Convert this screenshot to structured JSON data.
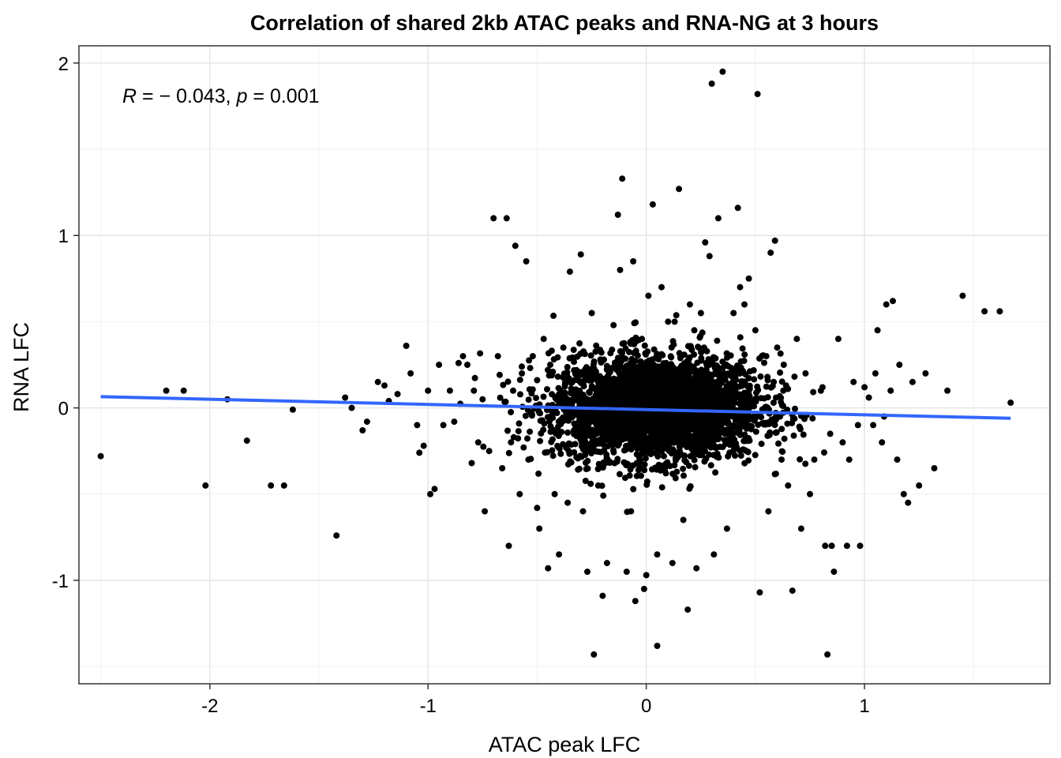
{
  "chart_data": {
    "type": "scatter",
    "title": "Correlation of shared 2kb ATAC peaks and RNA-NG  at 3 hours",
    "xlabel": "ATAC peak LFC",
    "ylabel": "RNA LFC",
    "xlim": [
      -2.6,
      1.85
    ],
    "ylim": [
      -1.6,
      2.1
    ],
    "x_ticks": [
      -2,
      -1,
      0,
      1
    ],
    "x_tick_labels": [
      "-2",
      "-1",
      "0",
      "1"
    ],
    "y_ticks": [
      -1,
      0,
      1,
      2
    ],
    "y_tick_labels": [
      "-1",
      "0",
      "1",
      "2"
    ],
    "grid": true,
    "annotation": {
      "r_symbol": "R",
      "r_equals": " = − 0.043, ",
      "p_symbol": "p",
      "p_equals": " = 0.001"
    },
    "point_color": "#000000",
    "fit_line": {
      "color": "#3366FF",
      "x": [
        -2.5,
        1.67
      ],
      "y": [
        0.065,
        -0.06
      ]
    },
    "points": [
      [
        -2.5,
        -0.28
      ],
      [
        -2.2,
        0.1
      ],
      [
        -2.12,
        0.1
      ],
      [
        -2.02,
        -0.45
      ],
      [
        -1.92,
        0.05
      ],
      [
        -1.83,
        -0.19
      ],
      [
        -1.72,
        -0.45
      ],
      [
        -1.66,
        -0.45
      ],
      [
        -1.62,
        -0.01
      ],
      [
        -1.42,
        -0.74
      ],
      [
        -1.38,
        0.06
      ],
      [
        -1.35,
        0.0
      ],
      [
        -1.3,
        -0.13
      ],
      [
        -1.28,
        -0.08
      ],
      [
        -1.23,
        0.15
      ],
      [
        -1.2,
        0.13
      ],
      [
        -1.18,
        0.04
      ],
      [
        -1.14,
        0.08
      ],
      [
        -1.1,
        0.36
      ],
      [
        -1.08,
        0.2
      ],
      [
        -1.05,
        -0.1
      ],
      [
        -1.04,
        -0.26
      ],
      [
        -1.02,
        -0.22
      ],
      [
        -1.0,
        0.1
      ],
      [
        -0.99,
        -0.5
      ],
      [
        -0.97,
        -0.47
      ],
      [
        -0.95,
        0.25
      ],
      [
        -0.93,
        -0.1
      ],
      [
        -0.9,
        0.1
      ],
      [
        -0.88,
        -0.08
      ],
      [
        -0.86,
        0.26
      ],
      [
        -0.84,
        0.3
      ],
      [
        -0.82,
        0.25
      ],
      [
        -0.8,
        -0.32
      ],
      [
        -0.79,
        0.1
      ],
      [
        -0.77,
        -0.2
      ],
      [
        -0.75,
        0.05
      ],
      [
        -0.74,
        -0.6
      ],
      [
        -0.72,
        -0.25
      ],
      [
        -0.7,
        1.1
      ],
      [
        -0.68,
        0.3
      ],
      [
        -0.66,
        -0.35
      ],
      [
        -0.64,
        1.1
      ],
      [
        -0.63,
        -0.8
      ],
      [
        -0.61,
        0.1
      ],
      [
        -0.6,
        0.94
      ],
      [
        -0.58,
        -0.5
      ],
      [
        -0.57,
        0.2
      ],
      [
        -0.55,
        0.85
      ],
      [
        -0.54,
        -0.3
      ],
      [
        -0.52,
        0.3
      ],
      [
        -0.5,
        -0.58
      ],
      [
        -0.49,
        -0.7
      ],
      [
        -0.47,
        0.4
      ],
      [
        -0.45,
        -0.93
      ],
      [
        -0.44,
        0.25
      ],
      [
        -0.42,
        -0.5
      ],
      [
        -0.4,
        -0.85
      ],
      [
        -0.38,
        0.35
      ],
      [
        -0.36,
        -0.55
      ],
      [
        -0.35,
        0.79
      ],
      [
        -0.3,
        0.89
      ],
      [
        -0.29,
        -0.6
      ],
      [
        -0.27,
        -0.95
      ],
      [
        -0.25,
        0.55
      ],
      [
        -0.24,
        -1.43
      ],
      [
        -0.22,
        -0.45
      ],
      [
        -0.2,
        -1.09
      ],
      [
        -0.18,
        -0.9
      ],
      [
        -0.15,
        0.48
      ],
      [
        -0.13,
        1.12
      ],
      [
        -0.12,
        0.8
      ],
      [
        -0.11,
        1.33
      ],
      [
        -0.09,
        -0.95
      ],
      [
        -0.07,
        -0.6
      ],
      [
        -0.06,
        0.85
      ],
      [
        -0.05,
        -1.12
      ],
      [
        -0.02,
        0.4
      ],
      [
        -0.01,
        -1.05
      ],
      [
        0.0,
        -0.97
      ],
      [
        0.01,
        0.65
      ],
      [
        0.03,
        1.18
      ],
      [
        0.05,
        -1.38
      ],
      [
        0.05,
        -0.85
      ],
      [
        0.07,
        0.7
      ],
      [
        0.1,
        0.5
      ],
      [
        0.12,
        -0.9
      ],
      [
        0.13,
        0.5
      ],
      [
        0.15,
        1.27
      ],
      [
        0.17,
        -0.65
      ],
      [
        0.19,
        -1.17
      ],
      [
        0.2,
        0.6
      ],
      [
        0.22,
        0.45
      ],
      [
        0.23,
        -0.93
      ],
      [
        0.25,
        0.55
      ],
      [
        0.27,
        0.96
      ],
      [
        0.29,
        0.88
      ],
      [
        0.3,
        1.88
      ],
      [
        0.31,
        -0.85
      ],
      [
        0.33,
        1.1
      ],
      [
        0.35,
        1.95
      ],
      [
        0.37,
        -0.7
      ],
      [
        0.4,
        0.55
      ],
      [
        0.42,
        1.16
      ],
      [
        0.43,
        0.7
      ],
      [
        0.45,
        0.6
      ],
      [
        0.47,
        0.75
      ],
      [
        0.5,
        0.45
      ],
      [
        0.51,
        1.82
      ],
      [
        0.52,
        -1.07
      ],
      [
        0.55,
        0.3
      ],
      [
        0.56,
        -0.6
      ],
      [
        0.57,
        0.9
      ],
      [
        0.59,
        0.97
      ],
      [
        0.6,
        0.35
      ],
      [
        0.62,
        -0.3
      ],
      [
        0.63,
        0.25
      ],
      [
        0.65,
        -0.45
      ],
      [
        0.67,
        -1.06
      ],
      [
        0.69,
        0.4
      ],
      [
        0.71,
        -0.7
      ],
      [
        0.73,
        0.2
      ],
      [
        0.75,
        -0.5
      ],
      [
        0.77,
        -0.3
      ],
      [
        0.8,
        0.1
      ],
      [
        0.82,
        -0.8
      ],
      [
        0.83,
        -1.43
      ],
      [
        0.85,
        -0.8
      ],
      [
        0.86,
        -0.95
      ],
      [
        0.88,
        0.4
      ],
      [
        0.9,
        -0.2
      ],
      [
        0.92,
        -0.8
      ],
      [
        0.93,
        -0.3
      ],
      [
        0.95,
        0.15
      ],
      [
        0.97,
        -0.1
      ],
      [
        0.98,
        -0.8
      ],
      [
        1.0,
        0.12
      ],
      [
        1.02,
        0.06
      ],
      [
        1.04,
        -0.1
      ],
      [
        1.05,
        0.2
      ],
      [
        1.06,
        0.45
      ],
      [
        1.08,
        -0.2
      ],
      [
        1.09,
        -0.05
      ],
      [
        1.1,
        0.6
      ],
      [
        1.12,
        0.1
      ],
      [
        1.13,
        0.62
      ],
      [
        1.15,
        -0.3
      ],
      [
        1.16,
        0.25
      ],
      [
        1.18,
        -0.5
      ],
      [
        1.2,
        -0.55
      ],
      [
        1.22,
        0.15
      ],
      [
        1.25,
        -0.45
      ],
      [
        1.28,
        0.2
      ],
      [
        1.32,
        -0.35
      ],
      [
        1.38,
        0.1
      ],
      [
        1.45,
        0.65
      ],
      [
        1.55,
        0.56
      ],
      [
        1.62,
        0.56
      ],
      [
        1.67,
        0.03
      ]
    ],
    "cloud": {
      "center": [
        0.05,
        0.0
      ],
      "sd": [
        0.24,
        0.15
      ],
      "n": 3200
    }
  }
}
